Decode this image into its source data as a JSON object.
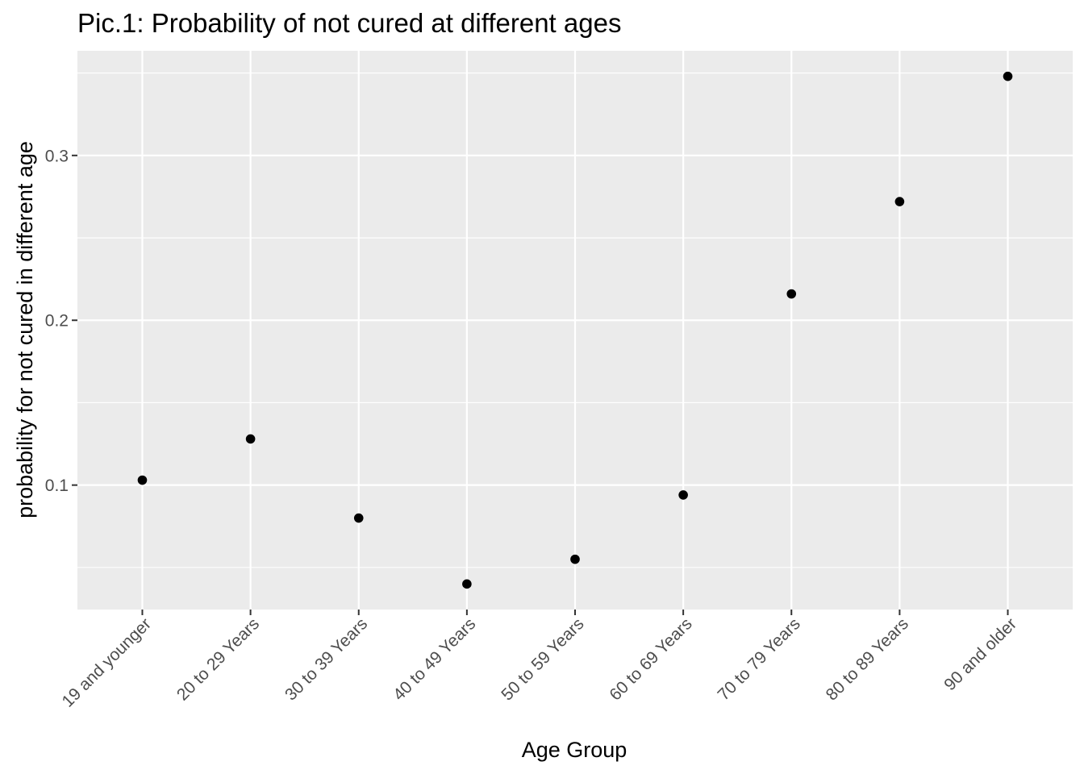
{
  "chart_data": {
    "type": "scatter",
    "title": "Pic.1: Probability of not cured at different ages",
    "xlabel": "Age Group",
    "ylabel": "probability for not cured in different age",
    "categories": [
      "19 and younger",
      "20 to 29 Years",
      "30 to 39 Years",
      "40 to 49 Years",
      "50 to 59 Years",
      "60 to 69 Years",
      "70 to 79 Years",
      "80 to 89 Years",
      "90 and older"
    ],
    "values": [
      0.103,
      0.128,
      0.08,
      0.04,
      0.055,
      0.094,
      0.216,
      0.272,
      0.348
    ],
    "ylim": [
      0.0245,
      0.3635
    ],
    "yticks": [
      0.1,
      0.2,
      0.3
    ],
    "ytick_labels": [
      "0.1",
      "0.2",
      "0.3"
    ],
    "y_minor_ticks": [
      0.05,
      0.15,
      0.25,
      0.35
    ],
    "grid": true,
    "legend": "none",
    "colors": {
      "panel": "#ebebeb",
      "grid": "#ffffff",
      "point": "#000000",
      "tick_text": "#4d4d4d",
      "tick_mark": "#333333"
    }
  }
}
